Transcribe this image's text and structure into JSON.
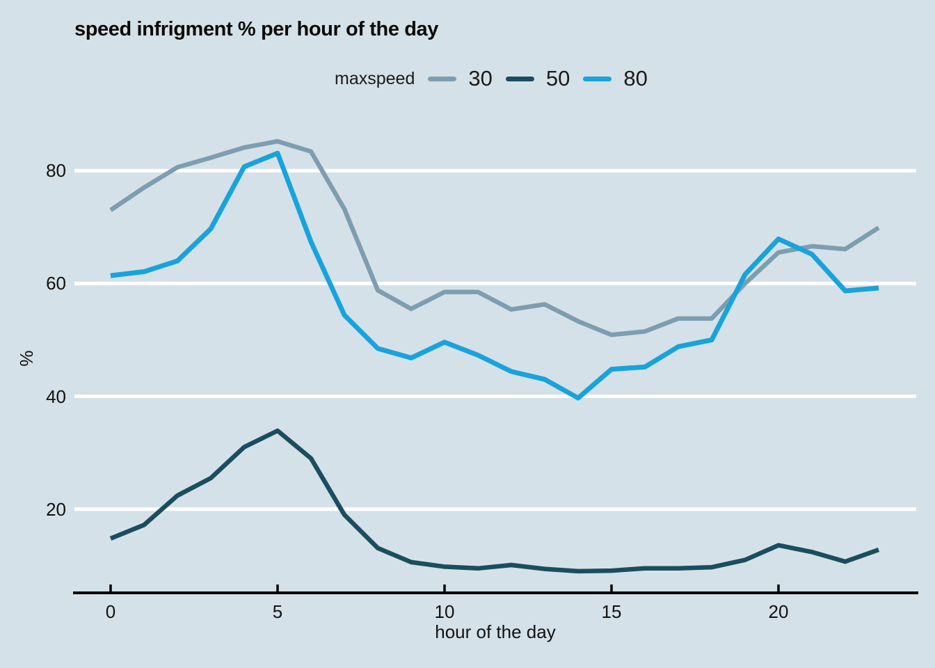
{
  "chart_data": {
    "type": "line",
    "title": "speed infrigment % per hour of the day",
    "legend_title": "maxspeed",
    "legend_position": "top-center",
    "xlabel": "hour of the day",
    "ylabel": "%",
    "x": [
      0,
      1,
      2,
      3,
      4,
      5,
      6,
      7,
      8,
      9,
      10,
      11,
      12,
      13,
      14,
      15,
      16,
      17,
      18,
      19,
      20,
      21,
      22,
      23
    ],
    "xticks": [
      0,
      5,
      10,
      15,
      20
    ],
    "yticks": [
      20,
      40,
      60,
      80
    ],
    "xlim": [
      -1.1,
      24.1
    ],
    "ylim": [
      5,
      88
    ],
    "grid": "horizontal",
    "gridline_color": "#ffffff",
    "background_color": "#d5e1e8",
    "axis_color": "#000000",
    "series": [
      {
        "name": "30",
        "color": "#7d9eb0",
        "values": [
          73,
          77,
          80.6,
          82.3,
          84.1,
          85.2,
          83.4,
          73.2,
          58.8,
          55.5,
          58.5,
          58.5,
          55.4,
          56.3,
          53.3,
          50.9,
          51.5,
          53.8,
          53.8,
          60,
          65.5,
          66.6,
          66.1,
          69.9
        ]
      },
      {
        "name": "50",
        "color": "#1a4e5f",
        "values": [
          14.8,
          17.2,
          22.4,
          25.5,
          31,
          33.9,
          29,
          19,
          13.1,
          10.6,
          9.8,
          9.5,
          10.1,
          9.4,
          9,
          9.1,
          9.5,
          9.5,
          9.7,
          11,
          13.6,
          12.4,
          10.7,
          12.8
        ]
      },
      {
        "name": "80",
        "color": "#18a3dc",
        "values": [
          61.4,
          62.1,
          64,
          69.7,
          80.7,
          83.1,
          67.4,
          54.4,
          48.5,
          46.8,
          49.6,
          47.3,
          44.4,
          43,
          39.7,
          44.8,
          45.2,
          48.8,
          50,
          61.6,
          67.9,
          65.2,
          58.7,
          59.2
        ]
      }
    ]
  }
}
